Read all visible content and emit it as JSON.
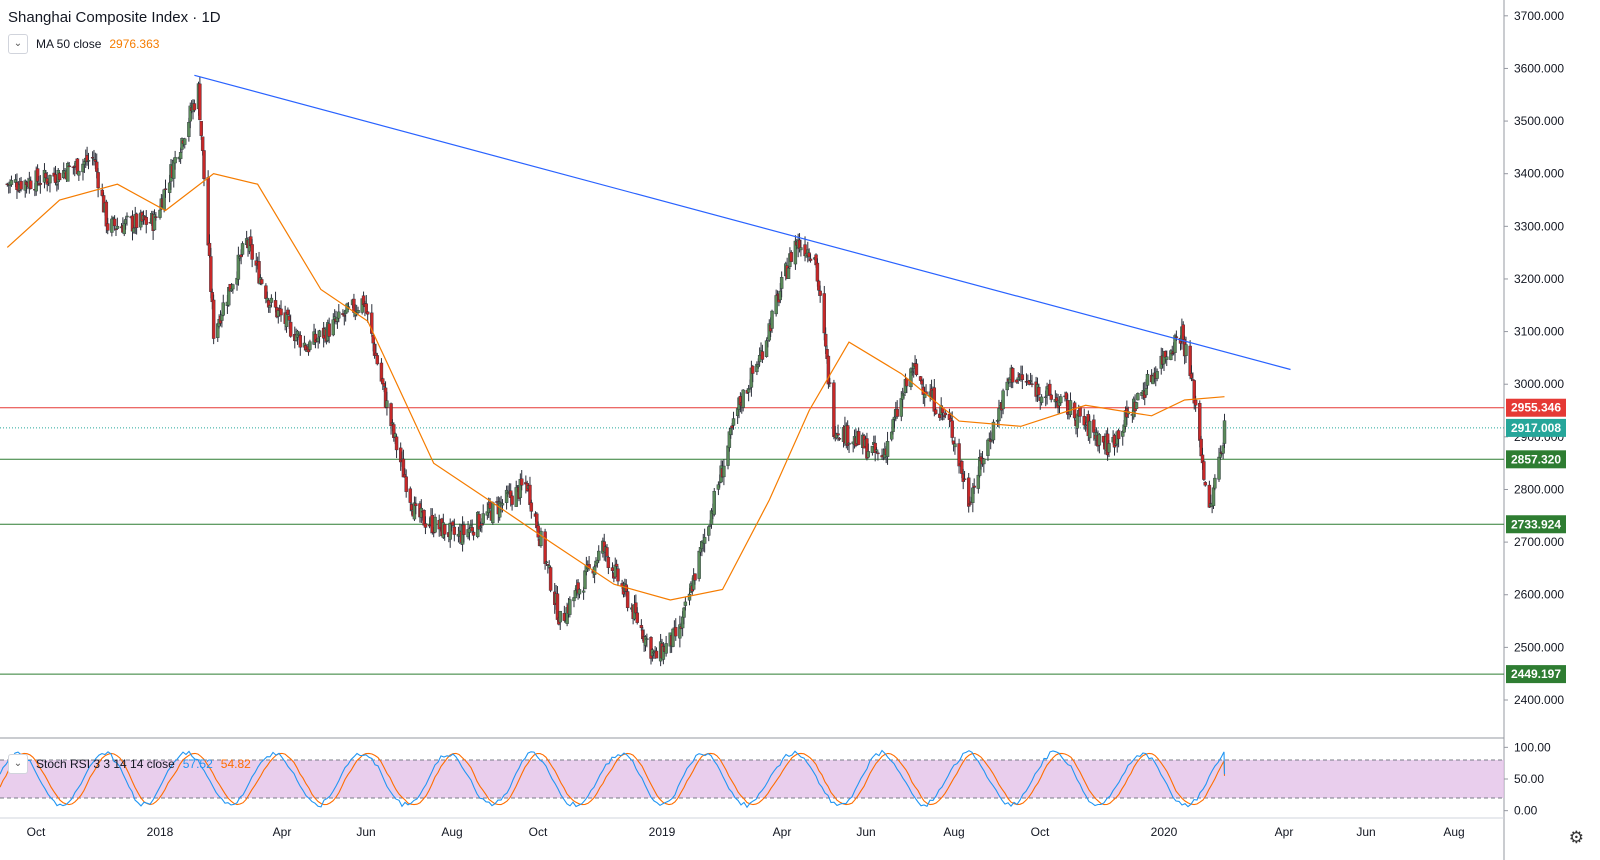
{
  "header": {
    "title": "Shanghai Composite Index · 1D",
    "ma_label": "MA 50 close",
    "ma_value": "2976.363"
  },
  "stoch": {
    "label": "Stoch RSI 3 3 14 14 close",
    "k_value": "57.52",
    "d_value": "54.82",
    "axis_labels": [
      "100.00",
      "50.00",
      "0.00"
    ]
  },
  "colors": {
    "up": "#26a69a",
    "candle_up": "#5b8a5a",
    "candle_down": "#c62828",
    "ma": "#f57c00",
    "trendline": "#2962ff",
    "resistance": "#e53935",
    "support": "#2e7d32",
    "current_price": "#26a69a",
    "stoch_fill": "#e1bee7",
    "stoch_k": "#2196f3",
    "stoch_d": "#ff6d00"
  },
  "icons": {
    "collapse": "chevron-down-icon",
    "settings": "gear-icon"
  },
  "chart_data": {
    "type": "candlestick",
    "title": "Shanghai Composite Index · 1D",
    "ylim": [
      2350,
      3720
    ],
    "y_ticks": [
      "2400.000",
      "2500.000",
      "2600.000",
      "2700.000",
      "2800.000",
      "2900.000",
      "3000.000",
      "3100.000",
      "3200.000",
      "3300.000",
      "3400.000",
      "3500.000",
      "3600.000",
      "3700.000"
    ],
    "x_ticks": [
      "Oct",
      "2018",
      "Apr",
      "Jun",
      "Aug",
      "Oct",
      "2019",
      "Apr",
      "Jun",
      "Aug",
      "Oct",
      "2020",
      "Apr",
      "Jun",
      "Aug"
    ],
    "price_path": [
      [
        "2017-09-12",
        3380
      ],
      [
        "2017-10-10",
        3390
      ],
      [
        "2017-11-14",
        3430
      ],
      [
        "2017-11-24",
        3300
      ],
      [
        "2017-12-28",
        3310
      ],
      [
        "2018-01-29",
        3560
      ],
      [
        "2018-02-09",
        3100
      ],
      [
        "2018-03-05",
        3270
      ],
      [
        "2018-03-23",
        3150
      ],
      [
        "2018-04-18",
        3070
      ],
      [
        "2018-05-29",
        3160
      ],
      [
        "2018-06-20",
        2900
      ],
      [
        "2018-07-06",
        2750
      ],
      [
        "2018-08-06",
        2710
      ],
      [
        "2018-09-25",
        2810
      ],
      [
        "2018-10-19",
        2550
      ],
      [
        "2018-11-19",
        2690
      ],
      [
        "2018-12-27",
        2480
      ],
      [
        "2019-01-14",
        2530
      ],
      [
        "2019-02-26",
        2960
      ],
      [
        "2019-03-13",
        3050
      ],
      [
        "2019-04-08",
        3270
      ],
      [
        "2019-04-22",
        3250
      ],
      [
        "2019-05-06",
        2920
      ],
      [
        "2019-06-10",
        2860
      ],
      [
        "2019-07-02",
        3030
      ],
      [
        "2019-07-30",
        2920
      ],
      [
        "2019-08-12",
        2780
      ],
      [
        "2019-09-12",
        3020
      ],
      [
        "2019-10-21",
        2960
      ],
      [
        "2019-11-22",
        2880
      ],
      [
        "2019-12-31",
        3050
      ],
      [
        "2020-01-14",
        3100
      ],
      [
        "2020-01-23",
        2980
      ],
      [
        "2020-02-03",
        2750
      ],
      [
        "2020-02-14",
        2917
      ]
    ],
    "ma_50_close": [
      [
        "2017-09-12",
        3260
      ],
      [
        "2017-10-20",
        3350
      ],
      [
        "2017-12-01",
        3380
      ],
      [
        "2018-01-05",
        3330
      ],
      [
        "2018-02-09",
        3400
      ],
      [
        "2018-03-13",
        3380
      ],
      [
        "2018-04-28",
        3180
      ],
      [
        "2018-06-01",
        3120
      ],
      [
        "2018-07-19",
        2850
      ],
      [
        "2018-08-28",
        2780
      ],
      [
        "2018-10-12",
        2700
      ],
      [
        "2018-11-27",
        2620
      ],
      [
        "2019-01-07",
        2590
      ],
      [
        "2019-02-14",
        2610
      ],
      [
        "2019-03-20",
        2780
      ],
      [
        "2019-04-18",
        2950
      ],
      [
        "2019-05-17",
        3080
      ],
      [
        "2019-06-24",
        3020
      ],
      [
        "2019-08-05",
        2930
      ],
      [
        "2019-09-19",
        2920
      ],
      [
        "2019-11-05",
        2960
      ],
      [
        "2019-12-23",
        2940
      ],
      [
        "2020-01-16",
        2970
      ],
      [
        "2020-02-14",
        2976.363
      ]
    ],
    "trendline": {
      "from": [
        "2018-01-26",
        3587
      ],
      "to": [
        "2020-04-02",
        3028
      ]
    },
    "horizontal_levels": [
      {
        "value": 2955.346,
        "label": "2955.346",
        "color": "red"
      },
      {
        "value": 2917.008,
        "label": "2917.008",
        "color": "teal",
        "style": "dotted"
      },
      {
        "value": 2857.32,
        "label": "2857.320",
        "color": "green"
      },
      {
        "value": 2733.924,
        "label": "2733.924",
        "color": "green"
      },
      {
        "value": 2449.197,
        "label": "2449.197",
        "color": "green"
      }
    ],
    "stoch_rsi": {
      "k": 57.52,
      "d": 54.82,
      "upper_band": 80,
      "lower_band": 20,
      "ylim": [
        0,
        100
      ]
    }
  }
}
